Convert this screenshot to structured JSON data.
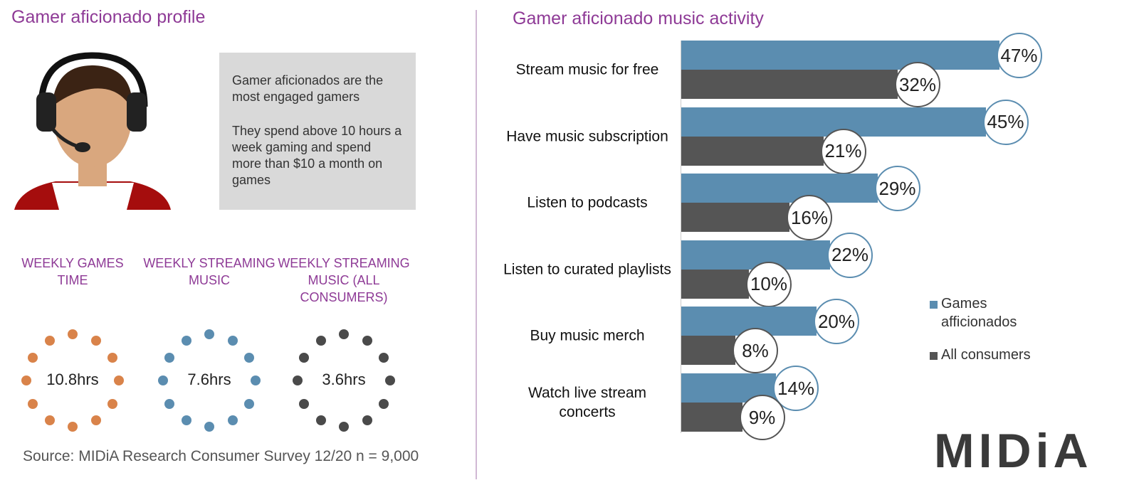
{
  "profile": {
    "title": "Gamer aficionado profile",
    "description": [
      "Gamer aficionados are the most engaged gamers",
      "They spend above 10 hours a week gaming and spend more than $10 a month on games"
    ],
    "stats": [
      {
        "label": "WEEKLY GAMES TIME",
        "value": "10.8hrs",
        "color": "#d9834a"
      },
      {
        "label": "WEEKLY STREAMING MUSIC",
        "value": "7.6hrs",
        "color": "#5b8db0"
      },
      {
        "label": "WEEKLY STREAMING MUSIC (ALL CONSUMERS)",
        "value": "3.6hrs",
        "color": "#4a4a4a"
      }
    ],
    "source": "Source: MIDiA Research Consumer Survey 12/20 n = 9,000"
  },
  "chart_data": {
    "type": "bar",
    "orientation": "horizontal",
    "title": "Gamer aficionado music activity",
    "categories": [
      "Stream music for free",
      "Have music subscription",
      "Listen to podcasts",
      "Listen to curated playlists",
      "Buy music merch",
      "Watch live stream concerts"
    ],
    "series": [
      {
        "name": "Games afficionados",
        "color": "#5b8db0",
        "values": [
          47,
          45,
          29,
          22,
          20,
          14
        ],
        "value_labels": [
          "47%",
          "45%",
          "29%",
          "22%",
          "20%",
          "14%"
        ]
      },
      {
        "name": "All consumers",
        "color": "#555555",
        "values": [
          32,
          21,
          16,
          10,
          8,
          9
        ],
        "value_labels": [
          "32%",
          "21%",
          "16%",
          "10%",
          "8%",
          "9%"
        ]
      }
    ],
    "xlim": [
      0,
      50
    ]
  },
  "logo": "MIDiA"
}
